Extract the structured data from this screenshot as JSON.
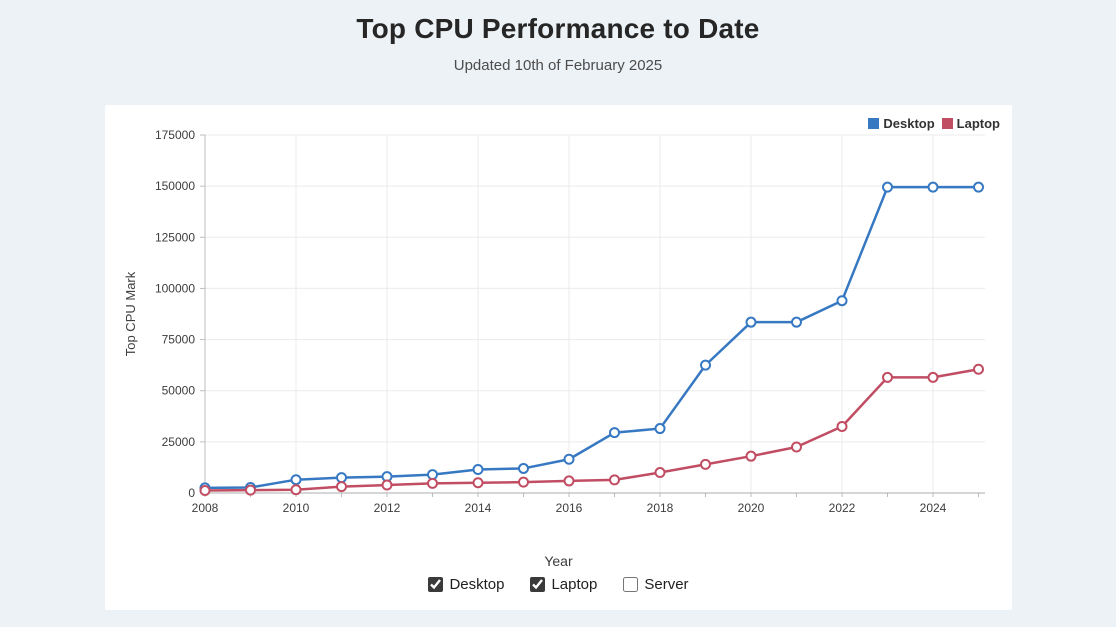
{
  "page": {
    "title": "Top CPU Performance to Date",
    "subtitle": "Updated 10th of February 2025"
  },
  "chart_data": {
    "type": "line",
    "x": [
      2008,
      2009,
      2010,
      2011,
      2012,
      2013,
      2014,
      2015,
      2016,
      2017,
      2018,
      2019,
      2020,
      2021,
      2022,
      2023,
      2024,
      2025
    ],
    "series": [
      {
        "name": "Desktop",
        "color": "#3778c2",
        "values": [
          2500,
          2700,
          6500,
          7500,
          8000,
          9000,
          11500,
          12000,
          16500,
          29500,
          31500,
          62500,
          83500,
          83500,
          94000,
          149500,
          149500,
          149500
        ]
      },
      {
        "name": "Laptop",
        "color": "#c14d63",
        "values": [
          1200,
          1400,
          1600,
          3100,
          3900,
          4700,
          5000,
          5300,
          5900,
          6400,
          10000,
          14000,
          18000,
          22500,
          32500,
          56500,
          56500,
          60500
        ]
      }
    ],
    "title": "Top CPU Performance to Date",
    "xlabel": "Year",
    "ylabel": "Top CPU Mark",
    "ylim": [
      0,
      175000
    ],
    "yticks": [
      0,
      25000,
      50000,
      75000,
      100000,
      125000,
      150000,
      175000
    ],
    "xticks": [
      2008,
      2010,
      2012,
      2014,
      2016,
      2018,
      2020,
      2022,
      2024
    ],
    "grid": true,
    "legend_position": "top-right",
    "marker": "open-circle"
  },
  "controls": {
    "items": [
      {
        "label": "Desktop",
        "checked": true
      },
      {
        "label": "Laptop",
        "checked": true
      },
      {
        "label": "Server",
        "checked": false
      }
    ]
  },
  "colors": {
    "page_background": "#edf2f6",
    "card_background": "#ffffff",
    "grid_line": "#ebebeb",
    "axis_line": "#bdbdbd",
    "tick_text": "#3d3d3d"
  }
}
